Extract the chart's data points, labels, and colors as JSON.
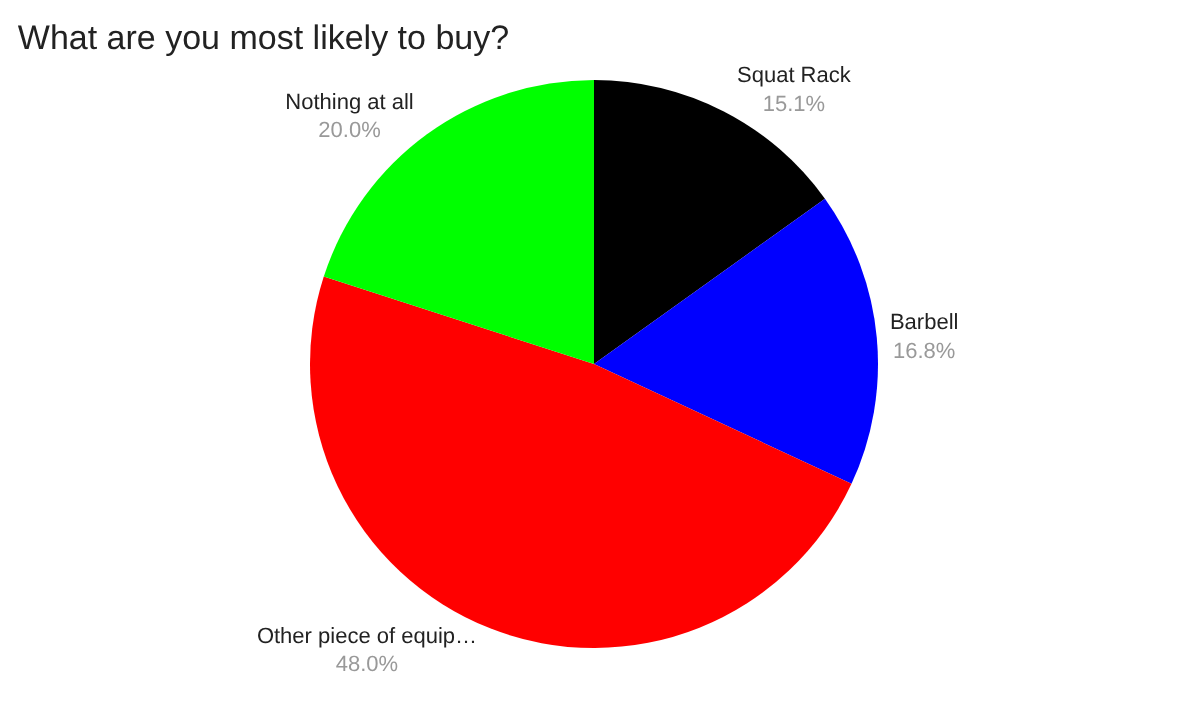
{
  "chart_data": {
    "type": "pie",
    "title": "What are you most likely to buy?",
    "categories": [
      "Squat Rack",
      "Barbell",
      "Other piece of equip…",
      "Nothing at all"
    ],
    "values": [
      15.1,
      16.8,
      48.0,
      20.0
    ],
    "value_labels": [
      "15.1%",
      "16.8%",
      "48.0%",
      "20.0%"
    ],
    "colors": [
      "#000000",
      "#0000ff",
      "#ff0000",
      "#00ff00"
    ],
    "legend": false
  }
}
